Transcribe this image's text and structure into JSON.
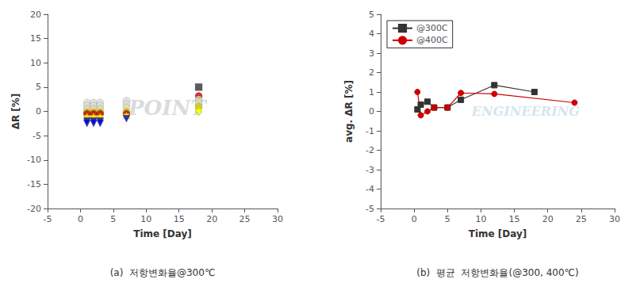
{
  "chart_data": [
    {
      "type": "scatter",
      "title": "(a)  저항변화율@300℃",
      "xlabel": "Time [Day]",
      "ylabel": "ΔR [%]",
      "xlim": [
        -5,
        30
      ],
      "ylim": [
        -20,
        20
      ],
      "xticks": [
        -5,
        0,
        5,
        10,
        15,
        20,
        25,
        30
      ],
      "yticks": [
        -20,
        -15,
        -10,
        -5,
        0,
        5,
        10,
        15,
        20
      ],
      "grid": false,
      "annotations": [
        {
          "text": "POINT",
          "color": "#cccccc"
        }
      ],
      "series": [
        {
          "color": "#dddddd",
          "marker": "circle",
          "x": [
            1.0
          ],
          "values": [
            1.8
          ]
        },
        {
          "color": "#dddddd",
          "marker": "circle",
          "x": [
            1.0
          ],
          "values": [
            1.2
          ]
        },
        {
          "color": "#ddddaa",
          "marker": "circle",
          "x": [
            1.0
          ],
          "values": [
            0.5
          ]
        },
        {
          "color": "#cccc00",
          "marker": "circle",
          "x": [
            1.0
          ],
          "values": [
            -0.2
          ]
        },
        {
          "color": "#cc0000",
          "marker": "circle",
          "x": [
            1.0
          ],
          "values": [
            -0.5
          ]
        },
        {
          "color": "#ffff00",
          "marker": "triangle-up",
          "x": [
            1.0
          ],
          "values": [
            -1.0
          ]
        },
        {
          "color": "#ffff00",
          "marker": "triangle-down",
          "x": [
            1.0
          ],
          "values": [
            -1.5
          ]
        },
        {
          "color": "#0000cc",
          "marker": "triangle-down",
          "x": [
            1.0
          ],
          "values": [
            -2.0
          ]
        },
        {
          "color": "#0000cc",
          "marker": "triangle-down",
          "x": [
            1.0
          ],
          "values": [
            -2.5
          ]
        },
        {
          "color": "#dddddd",
          "marker": "circle",
          "x": [
            2.0
          ],
          "values": [
            1.8
          ]
        },
        {
          "color": "#dddddd",
          "marker": "circle",
          "x": [
            2.0
          ],
          "values": [
            1.2
          ]
        },
        {
          "color": "#ddddaa",
          "marker": "circle",
          "x": [
            2.0
          ],
          "values": [
            0.5
          ]
        },
        {
          "color": "#cccc00",
          "marker": "circle",
          "x": [
            2.0
          ],
          "values": [
            -0.2
          ]
        },
        {
          "color": "#cc0000",
          "marker": "circle",
          "x": [
            2.0
          ],
          "values": [
            -0.5
          ]
        },
        {
          "color": "#ffff00",
          "marker": "triangle-up",
          "x": [
            2.0
          ],
          "values": [
            -1.0
          ]
        },
        {
          "color": "#ffff00",
          "marker": "triangle-down",
          "x": [
            2.0
          ],
          "values": [
            -1.5
          ]
        },
        {
          "color": "#0000cc",
          "marker": "triangle-down",
          "x": [
            2.0
          ],
          "values": [
            -2.0
          ]
        },
        {
          "color": "#0000cc",
          "marker": "triangle-down",
          "x": [
            2.0
          ],
          "values": [
            -2.5
          ]
        },
        {
          "color": "#dddddd",
          "marker": "circle",
          "x": [
            3.0
          ],
          "values": [
            1.8
          ]
        },
        {
          "color": "#dddddd",
          "marker": "circle",
          "x": [
            3.0
          ],
          "values": [
            1.2
          ]
        },
        {
          "color": "#ddddaa",
          "marker": "circle",
          "x": [
            3.0
          ],
          "values": [
            0.5
          ]
        },
        {
          "color": "#cccc00",
          "marker": "circle",
          "x": [
            3.0
          ],
          "values": [
            -0.2
          ]
        },
        {
          "color": "#cc0000",
          "marker": "circle",
          "x": [
            3.0
          ],
          "values": [
            -0.5
          ]
        },
        {
          "color": "#ffff00",
          "marker": "triangle-up",
          "x": [
            3.0
          ],
          "values": [
            -1.0
          ]
        },
        {
          "color": "#ffff00",
          "marker": "triangle-down",
          "x": [
            3.0
          ],
          "values": [
            -1.5
          ]
        },
        {
          "color": "#0000cc",
          "marker": "triangle-down",
          "x": [
            3.0
          ],
          "values": [
            -2.0
          ]
        },
        {
          "color": "#0000cc",
          "marker": "triangle-down",
          "x": [
            3.0
          ],
          "values": [
            -2.5
          ]
        },
        {
          "color": "#dddddd",
          "marker": "circle",
          "x": [
            7.0
          ],
          "values": [
            2.2
          ]
        },
        {
          "color": "#dddddd",
          "marker": "circle",
          "x": [
            7.0
          ],
          "values": [
            1.5
          ]
        },
        {
          "color": "#ddddaa",
          "marker": "circle",
          "x": [
            7.0
          ],
          "values": [
            0.8
          ]
        },
        {
          "color": "#cccc00",
          "marker": "circle",
          "x": [
            7.0
          ],
          "values": [
            -0.1
          ]
        },
        {
          "color": "#cc0000",
          "marker": "circle",
          "x": [
            7.0
          ],
          "values": [
            -0.5
          ]
        },
        {
          "color": "#ffff00",
          "marker": "triangle-up",
          "x": [
            7.0
          ],
          "values": [
            -0.8
          ]
        },
        {
          "color": "#ffff00",
          "marker": "triangle-down",
          "x": [
            7.0
          ],
          "values": [
            -1.2
          ]
        },
        {
          "color": "#0000cc",
          "marker": "triangle-down",
          "x": [
            7.0
          ],
          "values": [
            -1.5
          ]
        },
        {
          "color": "#333333",
          "marker": "square",
          "x": [
            18.0
          ],
          "values": [
            5.0
          ]
        },
        {
          "color": "#cc0000",
          "marker": "circle",
          "x": [
            18.0
          ],
          "values": [
            3.2
          ]
        },
        {
          "color": "#ddddaa",
          "marker": "circle",
          "x": [
            18.0
          ],
          "values": [
            2.5
          ]
        },
        {
          "color": "#dddddd",
          "marker": "circle",
          "x": [
            18.0
          ],
          "values": [
            2.0
          ]
        },
        {
          "color": "#dddddd",
          "marker": "circle",
          "x": [
            18.0
          ],
          "values": [
            1.5
          ]
        },
        {
          "color": "#cccc00",
          "marker": "circle",
          "x": [
            18.0
          ],
          "values": [
            1.0
          ]
        },
        {
          "color": "#ffff00",
          "marker": "triangle-up",
          "x": [
            18.0
          ],
          "values": [
            0.5
          ]
        },
        {
          "color": "#ffff00",
          "marker": "triangle-down",
          "x": [
            18.0
          ],
          "values": [
            -0.2
          ]
        }
      ]
    },
    {
      "type": "line",
      "title": "(b)  평균  저항변화율(@300, 400℃)",
      "xlabel": "Time [Day]",
      "ylabel": "avg. ΔR [%]",
      "xlim": [
        -5,
        30
      ],
      "ylim": [
        -5,
        5
      ],
      "xticks": [
        -5,
        0,
        5,
        10,
        15,
        20,
        25,
        30
      ],
      "yticks": [
        -5,
        -4,
        -3,
        -2,
        -1,
        0,
        1,
        2,
        3,
        4,
        5
      ],
      "grid": false,
      "legend": "upper left",
      "annotations": [
        {
          "text": "ENGINEERING",
          "color": "#c8dce8"
        }
      ],
      "series": [
        {
          "name": "@300C",
          "color": "#333333",
          "marker": "square",
          "x": [
            0.5,
            1.0,
            2.0,
            3.0,
            5.0,
            7.0,
            12.0,
            18.0
          ],
          "values": [
            0.1,
            0.35,
            0.5,
            0.2,
            0.2,
            0.6,
            1.35,
            1.0
          ]
        },
        {
          "name": "@400C",
          "color": "#cc0000",
          "marker": "circle",
          "x": [
            0.5,
            1.0,
            2.0,
            3.0,
            5.0,
            7.0,
            12.0,
            24.0
          ],
          "values": [
            1.0,
            -0.2,
            0.0,
            0.2,
            0.2,
            0.95,
            0.9,
            0.45
          ]
        }
      ]
    }
  ]
}
